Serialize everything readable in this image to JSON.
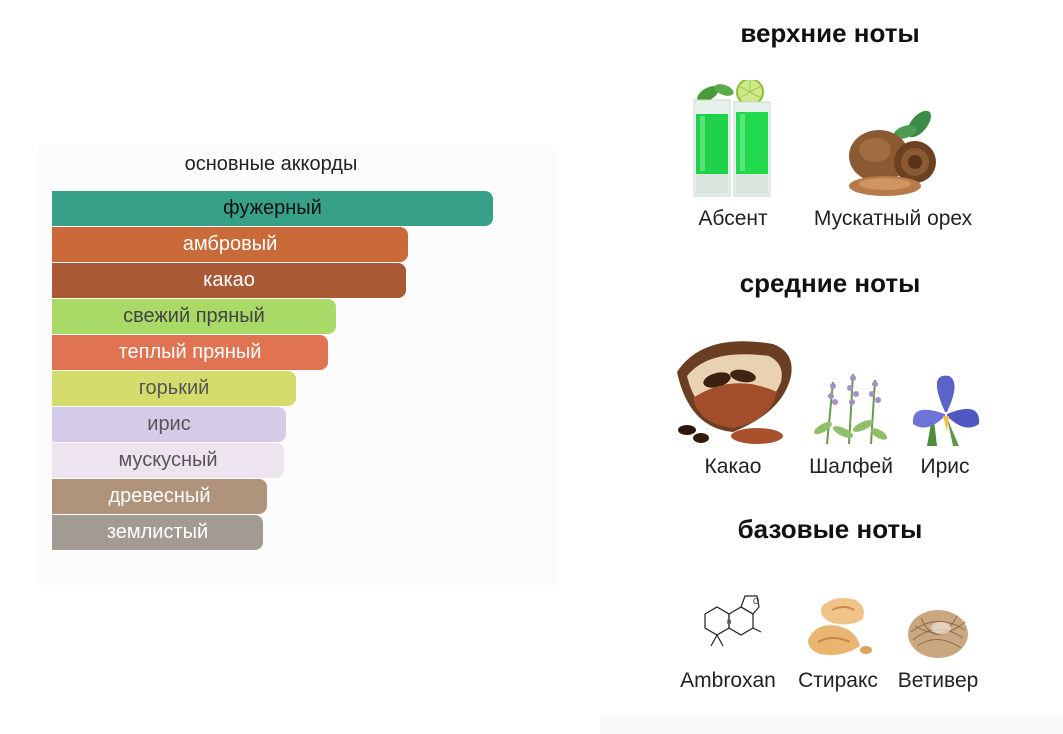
{
  "accords": {
    "title": "основные аккорды",
    "items": [
      {
        "label": "фужерный",
        "strength": 100,
        "color": "#37a089",
        "text_color": "#111111"
      },
      {
        "label": "амбровый",
        "strength": 80.7,
        "color": "#c96a38",
        "text_color": "#ffffff"
      },
      {
        "label": "какао",
        "strength": 80.3,
        "color": "#a95a35",
        "text_color": "#ffffff"
      },
      {
        "label": "свежий пряный",
        "strength": 64.4,
        "color": "#a9da68",
        "text_color": "#444444"
      },
      {
        "label": "теплый пряный",
        "strength": 62.6,
        "color": "#e07452",
        "text_color": "#ffffff"
      },
      {
        "label": "горький",
        "strength": 55.4,
        "color": "#d4dc6c",
        "text_color": "#555555"
      },
      {
        "label": "ирис",
        "strength": 53.1,
        "color": "#d4cbe8",
        "text_color": "#555555"
      },
      {
        "label": "мускусный",
        "strength": 52.6,
        "color": "#eee4f0",
        "text_color": "#555555"
      },
      {
        "label": "древесный",
        "strength": 48.8,
        "color": "#af947b",
        "text_color": "#ffffff"
      },
      {
        "label": "землистый",
        "strength": 47.8,
        "color": "#a19b94",
        "text_color": "#ffffff"
      }
    ]
  },
  "notes": {
    "top": {
      "title": "верхние ноты",
      "items": [
        {
          "name": "Абсент",
          "icon": "absinthe-icon"
        },
        {
          "name": "Мускатный орех",
          "icon": "nutmeg-icon"
        }
      ]
    },
    "middle": {
      "title": "средние ноты",
      "items": [
        {
          "name": "Какао",
          "icon": "cacao-icon"
        },
        {
          "name": "Шалфей",
          "icon": "sage-icon"
        },
        {
          "name": "Ирис",
          "icon": "iris-icon"
        }
      ]
    },
    "base": {
      "title": "базовые ноты",
      "items": [
        {
          "name": "Ambroxan",
          "icon": "ambroxan-molecule-icon"
        },
        {
          "name": "Стиракс",
          "icon": "styrax-icon"
        },
        {
          "name": "Ветивер",
          "icon": "vetiver-icon"
        }
      ]
    }
  }
}
